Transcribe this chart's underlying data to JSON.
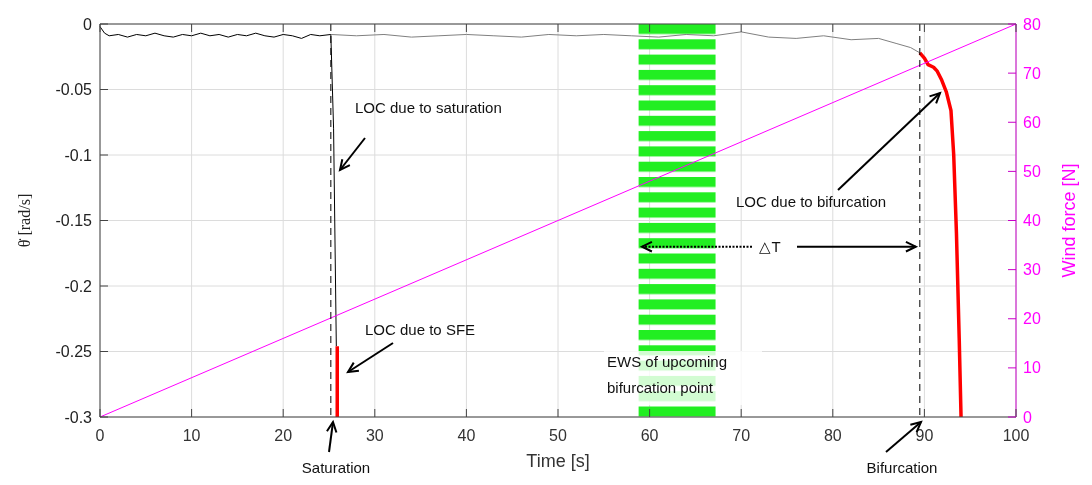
{
  "chart_data": {
    "type": "line",
    "xlabel": "Time [s]",
    "ylabel": "θ̇ [rad/s]",
    "y2label": "Wind force [N]",
    "xlim": [
      0,
      100
    ],
    "xticks": [
      0,
      10,
      20,
      30,
      40,
      50,
      60,
      70,
      80,
      90,
      100
    ],
    "ylim": [
      -0.3,
      0
    ],
    "yticks": [
      -0.3,
      -0.25,
      -0.2,
      -0.15,
      -0.1,
      -0.05,
      0
    ],
    "y2lim": [
      0,
      80
    ],
    "y2ticks": [
      0,
      10,
      20,
      30,
      40,
      50,
      60,
      70,
      80
    ],
    "grid": true,
    "series": [
      {
        "color": "#000000",
        "x": [
          0,
          0.5,
          1,
          2,
          3,
          4,
          5,
          6,
          7,
          8,
          9,
          10,
          11,
          12,
          13,
          14,
          15,
          16,
          17,
          18,
          19,
          20,
          21,
          22,
          23,
          24,
          25.2,
          25.5,
          25.8
        ],
        "values": [
          -0.002,
          -0.007,
          -0.009,
          -0.008,
          -0.01,
          -0.008,
          -0.009,
          -0.007,
          -0.009,
          -0.01,
          -0.008,
          -0.009,
          -0.007,
          -0.009,
          -0.008,
          -0.01,
          -0.008,
          -0.009,
          -0.007,
          -0.009,
          -0.01,
          -0.008,
          -0.009,
          -0.011,
          -0.008,
          -0.009,
          -0.008,
          -0.08,
          -0.246
        ]
      },
      {
        "color": "#808080",
        "x": [
          25.2,
          28,
          31,
          34,
          37,
          40,
          43,
          46,
          49,
          52,
          55,
          58,
          61,
          64,
          67,
          70,
          73,
          76,
          79,
          82,
          85,
          87,
          88.5,
          89.5
        ],
        "values": [
          -0.008,
          -0.009,
          -0.008,
          -0.01,
          -0.009,
          -0.008,
          -0.009,
          -0.01,
          -0.008,
          -0.009,
          -0.008,
          -0.009,
          -0.01,
          -0.008,
          -0.009,
          -0.006,
          -0.01,
          -0.011,
          -0.009,
          -0.012,
          -0.011,
          -0.015,
          -0.018,
          -0.022
        ]
      },
      {
        "color": "#ff0000",
        "x": [
          25.9,
          25.9
        ],
        "values": [
          -0.246,
          -0.3
        ]
      },
      {
        "color": "#ff0000",
        "x": [
          89.5,
          90,
          90.4,
          91,
          91.4,
          91.9,
          92.4,
          92.9,
          93.2,
          93.5,
          93.8,
          94
        ],
        "values": [
          -0.022,
          -0.026,
          -0.031,
          -0.033,
          -0.036,
          -0.043,
          -0.052,
          -0.066,
          -0.1,
          -0.16,
          -0.24,
          -0.3
        ]
      },
      {
        "color": "#ff00ff",
        "axis": "y2",
        "x": [
          0,
          100
        ],
        "values": [
          0,
          80
        ]
      }
    ],
    "ref_lines": [
      {
        "axis": "x",
        "value": 25.2,
        "color": "#000000",
        "line_style": "dashed"
      },
      {
        "axis": "x",
        "value": 89.5,
        "color": "#000000",
        "line_style": "dashed"
      }
    ],
    "bands": [
      {
        "axis": "x",
        "from": 58.8,
        "to": 67.2,
        "color": "#22ee22"
      }
    ],
    "annotations": [
      "LOC due to saturation",
      "LOC due to SFE",
      "LOC due to bifurcation",
      {
        "text": "△T",
        "x": 89.5,
        "y": -0.17
      },
      "EWS of upcoming bifurcation point",
      "Saturation",
      "Bifurcation"
    ]
  }
}
